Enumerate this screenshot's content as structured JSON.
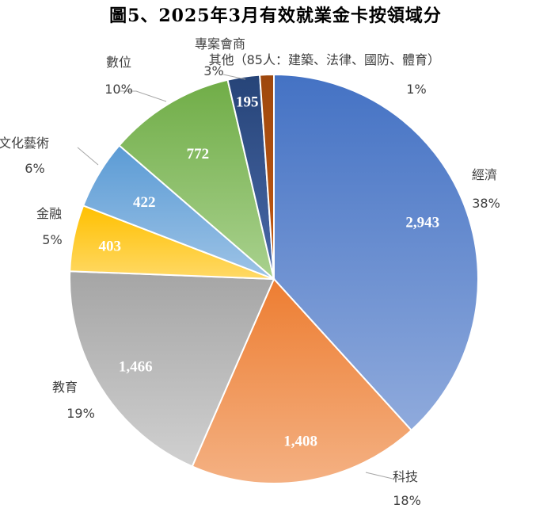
{
  "chart_data": {
    "type": "pie",
    "title": "圖5、2025年3月有效就業金卡按領域分",
    "slices": [
      {
        "label": "經濟",
        "value": 2943,
        "value_label": "2,943",
        "percent": "38%",
        "color_top": "#4472c4",
        "color_bottom": "#8faadc"
      },
      {
        "label": "科技",
        "value": 1408,
        "value_label": "1,408",
        "percent": "18%",
        "color_top": "#ed7d31",
        "color_bottom": "#f4b183"
      },
      {
        "label": "教育",
        "value": 1466,
        "value_label": "1,466",
        "percent": "19%",
        "color_top": "#a5a5a5",
        "color_bottom": "#d0d0d0"
      },
      {
        "label": "金融",
        "value": 403,
        "value_label": "403",
        "percent": "5%",
        "color_top": "#ffc000",
        "color_bottom": "#ffd966"
      },
      {
        "label": "文化藝術",
        "value": 422,
        "value_label": "422",
        "percent": "6%",
        "color_top": "#5b9bd5",
        "color_bottom": "#9dc3e6"
      },
      {
        "label": "數位",
        "value": 772,
        "value_label": "772",
        "percent": "10%",
        "color_top": "#70ad47",
        "color_bottom": "#a9d18e"
      },
      {
        "label": "專案會商",
        "value": 195,
        "value_label": "195",
        "percent": "3%",
        "color_top": "#264478",
        "color_bottom": "#4a69a8"
      },
      {
        "label": "其他（85人：建築、法律、國防、體育）",
        "value": 85,
        "value_label": "",
        "percent": "1%",
        "color_top": "#9e480e",
        "color_bottom": "#c55a11"
      }
    ]
  }
}
